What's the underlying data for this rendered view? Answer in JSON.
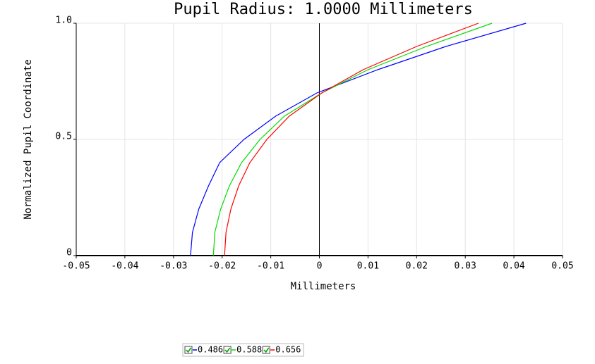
{
  "chart_data": {
    "type": "line",
    "title": "Pupil Radius: 1.0000 Millimeters",
    "x_label": "Millimeters",
    "y_label": "Normalized Pupil Coordinate",
    "xlim": [
      -0.05,
      0.05
    ],
    "xticks": [
      -0.05,
      -0.04,
      -0.03,
      -0.02,
      -0.01,
      0,
      0.01,
      0.02,
      0.03,
      0.04,
      0.05
    ],
    "ylim": [
      0,
      1
    ],
    "yticks": [
      0,
      0.5,
      {
        "value": 1,
        "label": "1.0"
      }
    ],
    "grid": true,
    "series": [
      {
        "name": "0.486",
        "color": "#0000ff",
        "x": [
          -0.0265,
          -0.0261,
          -0.0248,
          -0.0228,
          -0.0205,
          -0.0155,
          -0.009,
          -0.0005,
          0.012,
          0.026,
          0.0425
        ],
        "values": [
          0,
          0.1,
          0.2,
          0.3,
          0.4,
          0.5,
          0.6,
          0.7,
          0.8,
          0.9,
          1
        ]
      },
      {
        "name": "0.588",
        "color": "#00dd00",
        "x": [
          -0.0218,
          -0.0215,
          -0.0203,
          -0.0185,
          -0.016,
          -0.0122,
          -0.0072,
          0.0005,
          0.01,
          0.022,
          0.0355
        ],
        "values": [
          0,
          0.1,
          0.2,
          0.3,
          0.4,
          0.5,
          0.6,
          0.7,
          0.8,
          0.9,
          1
        ]
      },
      {
        "name": "0.656",
        "color": "#ff0000",
        "x": [
          -0.0195,
          -0.0192,
          -0.0182,
          -0.0166,
          -0.0143,
          -0.0108,
          -0.0062,
          0.0005,
          0.009,
          0.02,
          0.0327
        ],
        "values": [
          0,
          0.1,
          0.2,
          0.3,
          0.4,
          0.5,
          0.6,
          0.7,
          0.8,
          0.9,
          1
        ]
      }
    ]
  }
}
